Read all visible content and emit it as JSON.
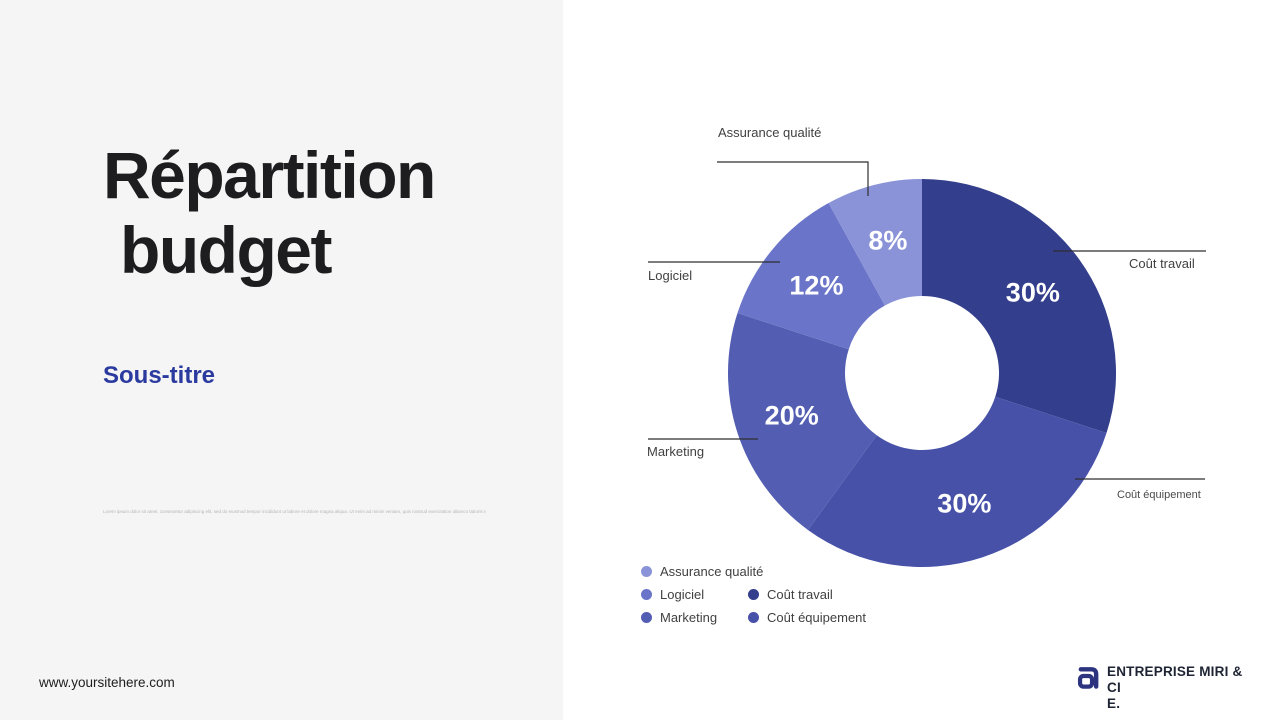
{
  "slide": {
    "title_line1": "Répartition",
    "title_line2": "budget",
    "subtitle": "Sous-titre",
    "fine_print": "Lorem ipsum dolor sit amet, consectetur adipiscing elit, sed do eiusmod tempor incididunt ut labore et dolore magna aliqua. Ut enim ad minim veniam, quis nostrud exercitation ullamco laboris nisi ut aliquip ex ea commodo consequat. Duis aute irure dolor in reprehenderit in voluptate velit esse cillum dolore eu fugiat nulla pariatur.",
    "website": "www.yoursitehere.com",
    "brand": {
      "line1": "ENTREPRISE MIRI & CI",
      "line2": "E."
    }
  },
  "colors": {
    "left_panel_bg": "#f5f5f5",
    "right_panel_bg": "#ffffff",
    "title_text": "#1d1d1f",
    "subtitle_text": "#2b3a9f",
    "label_text": "#414141",
    "callout_line": "#2f2f2f",
    "logo_mark": "#2c3480"
  },
  "chart_data": {
    "type": "pie",
    "style": "donut",
    "title": "",
    "start_angle_deg": 0,
    "direction": "clockwise",
    "inner_radius_ratio": 0.4,
    "value_label_format": "{value}%",
    "legend_position": "bottom-left",
    "grid": false,
    "segments": [
      {
        "label": "Coût travail",
        "value": 30,
        "color": "#333e8c"
      },
      {
        "label": "Coût équipement",
        "value": 30,
        "color": "#4751a8"
      },
      {
        "label": "Marketing",
        "value": 20,
        "color": "#535eb3"
      },
      {
        "label": "Logiciel",
        "value": 12,
        "color": "#6a74c8"
      },
      {
        "label": "Assurance qualité",
        "value": 8,
        "color": "#8a93d7"
      }
    ]
  }
}
